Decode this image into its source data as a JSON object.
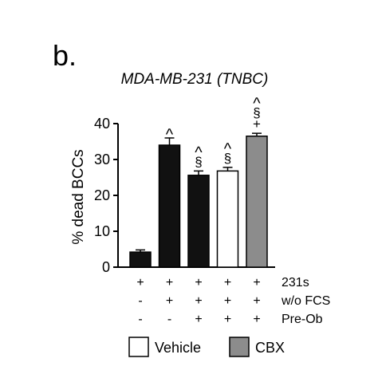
{
  "panel_label": "b.",
  "chart_data": {
    "type": "bar",
    "title": "MDA-MB-231 (TNBC)",
    "ylabel": "% dead BCCs",
    "xlabel": "",
    "ylim": [
      0,
      40
    ],
    "yticks": [
      0,
      10,
      20,
      30,
      40
    ],
    "bars": [
      {
        "value": 4.2,
        "error": 0.6,
        "fill": "black",
        "marks": []
      },
      {
        "value": 34.0,
        "error": 2.0,
        "fill": "black",
        "marks": [
          "^"
        ]
      },
      {
        "value": 25.6,
        "error": 1.2,
        "fill": "black",
        "marks": [
          "§",
          "^"
        ]
      },
      {
        "value": 26.8,
        "error": 1.0,
        "fill": "white",
        "marks": [
          "§",
          "^"
        ]
      },
      {
        "value": 36.5,
        "error": 0.8,
        "fill": "gray",
        "marks": [
          "+",
          "§",
          "^"
        ]
      }
    ],
    "conditions": [
      {
        "label": "231s",
        "values": [
          "+",
          "+",
          "+",
          "+",
          "+"
        ]
      },
      {
        "label": "w/o FCS",
        "values": [
          "-",
          "+",
          "+",
          "+",
          "+"
        ]
      },
      {
        "label": "Pre-Ob",
        "values": [
          "-",
          "-",
          "+",
          "+",
          "+"
        ]
      }
    ],
    "legend": [
      {
        "label": "Vehicle",
        "fill": "white"
      },
      {
        "label": "CBX",
        "fill": "gray"
      }
    ],
    "legend_position": "bottom",
    "colors": {
      "black": "#111111",
      "white": "#ffffff",
      "gray": "#8c8c8c"
    }
  }
}
